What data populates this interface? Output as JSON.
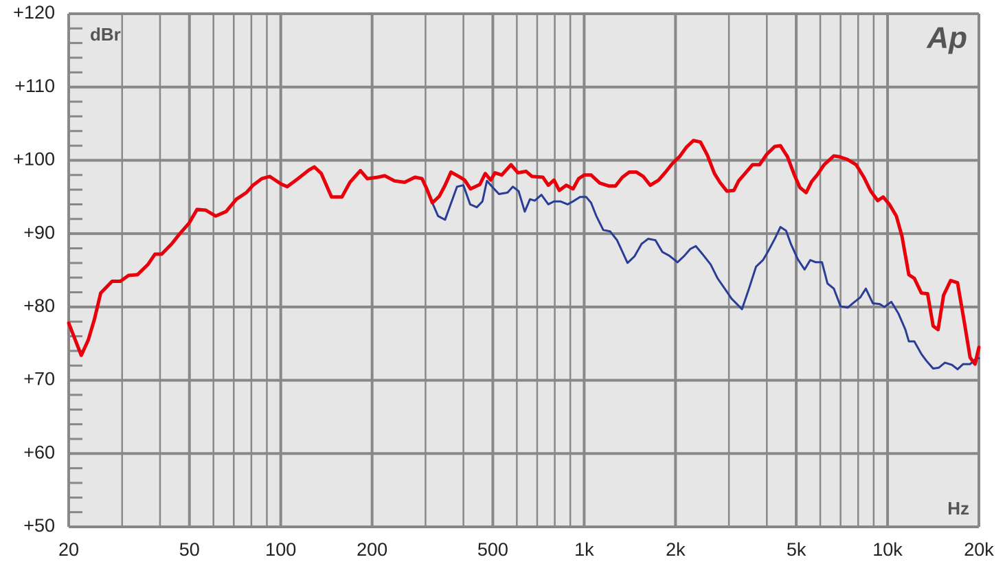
{
  "chart_data": {
    "type": "line",
    "y_unit": "dBr",
    "x_unit": "Hz",
    "logo": "Ap",
    "xlog": true,
    "grid": true,
    "xlim": [
      20,
      20000
    ],
    "ylim": [
      50,
      120
    ],
    "xticks": [
      20,
      50,
      100,
      200,
      500,
      {
        "value": 1000,
        "label": "1k"
      },
      {
        "value": 2000,
        "label": "2k"
      },
      {
        "value": 5000,
        "label": "5k"
      },
      {
        "value": 10000,
        "label": "10k"
      },
      {
        "value": 20000,
        "label": "20k"
      }
    ],
    "xminorticks": [
      30,
      40,
      60,
      70,
      80,
      90,
      300,
      400,
      600,
      700,
      800,
      900,
      3000,
      4000,
      6000,
      7000,
      8000,
      9000
    ],
    "yticks": [
      {
        "value": 50,
        "label": "+50"
      },
      {
        "value": 60,
        "label": "+60"
      },
      {
        "value": 70,
        "label": "+70"
      },
      {
        "value": 80,
        "label": "+80"
      },
      {
        "value": 90,
        "label": "+90"
      },
      {
        "value": 100,
        "label": "+100"
      },
      {
        "value": 110,
        "label": "+110"
      },
      {
        "value": 120,
        "label": "+120"
      }
    ],
    "yminorticks": [
      52,
      54,
      56,
      58,
      62,
      64,
      66,
      68,
      72,
      74,
      76,
      78,
      82,
      84,
      86,
      88,
      92,
      94,
      96,
      98,
      102,
      104,
      106,
      108,
      112,
      114,
      116,
      118
    ],
    "series": [
      {
        "color": "#2a3d96",
        "width": 3,
        "x": [
          303,
          316,
          330,
          348,
          381,
          400,
          421,
          443,
          462,
          478,
          497,
          524,
          559,
          582,
          608,
          637,
          663,
          687,
          723,
          762,
          795,
          836,
          882,
          919,
          969,
          1016,
          1054,
          1097,
          1156,
          1218,
          1284,
          1390,
          1465,
          1546,
          1627,
          1717,
          1810,
          1907,
          2031,
          2141,
          2236,
          2333,
          2456,
          2611,
          2752,
          2906,
          3065,
          3313,
          3494,
          3685,
          3886,
          4053,
          4250,
          4435,
          4628,
          4802,
          5060,
          5330,
          5560,
          5800,
          6080,
          6340,
          6650,
          7000,
          7390,
          7790,
          8130,
          8480,
          8940,
          9420,
          9760,
          10290,
          10860,
          11450,
          11750,
          12250,
          12920,
          13400,
          14130,
          14740,
          15450,
          16300,
          17010,
          17740,
          18710,
          19730,
          20000
        ],
        "values": [
          96.1,
          94.2,
          92.4,
          91.9,
          96.4,
          96.6,
          94.0,
          93.6,
          94.4,
          97.2,
          96.4,
          95.4,
          95.6,
          96.4,
          95.8,
          93.0,
          94.7,
          94.5,
          95.3,
          94.0,
          94.4,
          94.4,
          94.0,
          94.4,
          95.0,
          95.0,
          94.2,
          92.4,
          90.5,
          90.3,
          89.1,
          86.0,
          86.9,
          88.6,
          89.3,
          89.1,
          87.5,
          87.0,
          86.1,
          87.0,
          87.9,
          88.3,
          87.2,
          85.8,
          83.9,
          82.5,
          81.1,
          79.7,
          82.5,
          85.5,
          86.4,
          87.7,
          89.3,
          90.9,
          90.4,
          88.6,
          86.5,
          85.1,
          86.4,
          86.1,
          86.1,
          83.2,
          82.5,
          80.1,
          79.9,
          80.7,
          81.3,
          82.5,
          80.5,
          80.4,
          80.0,
          80.7,
          79.1,
          76.9,
          75.3,
          75.3,
          73.6,
          72.7,
          71.6,
          71.7,
          72.4,
          72.1,
          71.5,
          72.2,
          72.2,
          73.1,
          73.0
        ]
      },
      {
        "color": "#e8000b",
        "width": 5,
        "x": [
          20,
          22.0,
          23.2,
          24.3,
          25.5,
          27.8,
          29.6,
          31.5,
          33.7,
          36.5,
          38.5,
          40.5,
          43.7,
          46.5,
          49.8,
          53.0,
          56.6,
          61.0,
          66.0,
          71.4,
          77.0,
          81.0,
          86.6,
          92.0,
          100,
          105,
          114,
          124,
          129,
          136,
          147,
          159,
          169,
          183,
          193,
          209,
          220,
          237,
          256,
          277,
          292,
          303,
          316,
          333,
          348,
          364,
          390,
          404,
          422,
          453,
          472,
          492,
          508,
          535,
          574,
          605,
          643,
          673,
          731,
          762,
          795,
          828,
          873,
          919,
          959,
          1000,
          1054,
          1126,
          1206,
          1268,
          1337,
          1409,
          1486,
          1566,
          1651,
          1759,
          1855,
          1956,
          2062,
          2174,
          2292,
          2417,
          2548,
          2687,
          2802,
          2954,
          3115,
          3230,
          3405,
          3590,
          3785,
          3991,
          4250,
          4435,
          4677,
          4930,
          5140,
          5390,
          5620,
          5860,
          6180,
          6650,
          6930,
          7390,
          7880,
          8350,
          8800,
          9280,
          9670,
          10140,
          10690,
          11150,
          11750,
          12250,
          12920,
          13550,
          14130,
          14670,
          15300,
          16130,
          17010,
          17930,
          18710,
          19420,
          20000
        ],
        "values": [
          77.8,
          73.4,
          75.5,
          78.3,
          81.9,
          83.5,
          83.5,
          84.3,
          84.4,
          85.8,
          87.2,
          87.2,
          88.6,
          90.0,
          91.4,
          93.3,
          93.2,
          92.4,
          93.0,
          94.7,
          95.6,
          96.6,
          97.5,
          97.8,
          96.8,
          96.4,
          97.5,
          98.7,
          99.1,
          98.2,
          95.0,
          95.0,
          97.0,
          98.6,
          97.5,
          97.7,
          97.9,
          97.2,
          97.0,
          97.7,
          97.5,
          96.1,
          94.2,
          95.1,
          96.6,
          98.4,
          97.7,
          97.3,
          96.1,
          96.7,
          98.2,
          97.3,
          98.3,
          98.0,
          99.4,
          98.3,
          98.5,
          97.8,
          97.7,
          96.6,
          97.3,
          95.9,
          96.6,
          96.1,
          97.5,
          98.0,
          98.0,
          96.9,
          96.5,
          96.5,
          97.7,
          98.4,
          98.4,
          97.8,
          96.6,
          97.3,
          98.4,
          99.6,
          100.5,
          101.8,
          102.7,
          102.5,
          100.7,
          98.2,
          97.0,
          95.8,
          95.9,
          97.2,
          98.3,
          99.4,
          99.4,
          100.8,
          101.9,
          102.0,
          100.5,
          98.0,
          96.3,
          95.6,
          97.1,
          98.0,
          99.4,
          100.6,
          100.5,
          100.1,
          99.4,
          97.7,
          95.8,
          94.5,
          95.0,
          94.0,
          92.4,
          89.7,
          84.4,
          83.9,
          81.9,
          81.8,
          77.4,
          76.9,
          81.6,
          83.6,
          83.3,
          77.8,
          73.1,
          72.2,
          74.5
        ]
      }
    ]
  }
}
